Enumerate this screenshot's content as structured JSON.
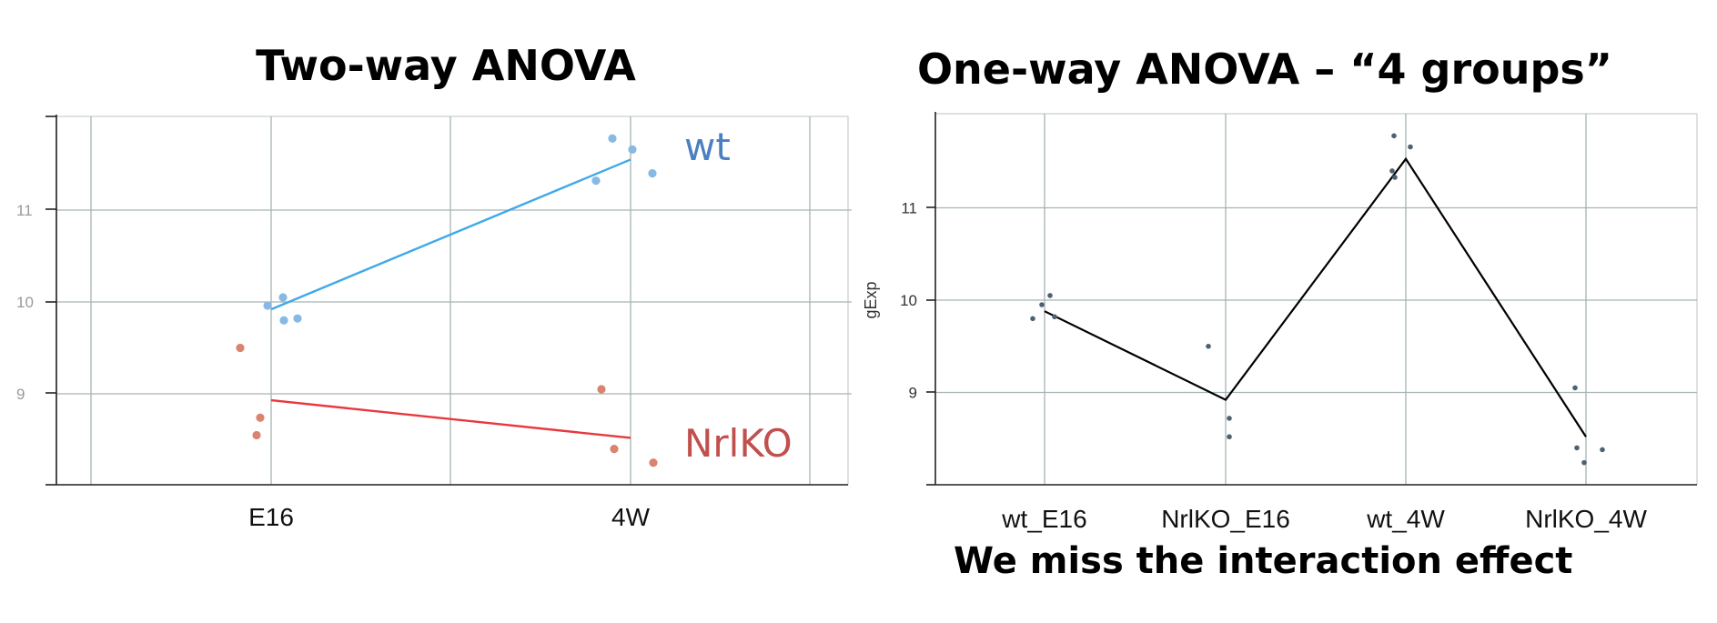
{
  "colors": {
    "wt": "#3fa9e8",
    "wt_points": "#87b9e2",
    "nrlko": "#e8383d",
    "nrlko_points": "#d9846e",
    "wt_label": "#4a7fc1",
    "nrlko_label": "#c0504d",
    "oneway_points": "#4d6170",
    "oneway_line": "#000000",
    "grid": "#a6b3b5"
  },
  "footnote": "We miss the interaction effect",
  "chart_data": [
    {
      "type": "line",
      "title": "Two-way ANOVA",
      "xlabel": "",
      "ylabel": "",
      "categories": [
        "E16",
        "4W"
      ],
      "y_ticks": [
        "11",
        "10",
        "9"
      ],
      "ylim": [
        8,
        12
      ],
      "grid": true,
      "series": [
        {
          "name": "wt",
          "fit": [
            9.92,
            11.55
          ],
          "points": [
            {
              "x": "E16",
              "y": 9.96
            },
            {
              "x": "E16",
              "y": 10.05
            },
            {
              "x": "E16",
              "y": 9.8
            },
            {
              "x": "E16",
              "y": 9.82
            },
            {
              "x": "4W",
              "y": 11.78
            },
            {
              "x": "4W",
              "y": 11.66
            },
            {
              "x": "4W",
              "y": 11.32
            },
            {
              "x": "4W",
              "y": 11.4
            }
          ]
        },
        {
          "name": "NrlKO",
          "fit": [
            8.93,
            8.52
          ],
          "points": [
            {
              "x": "E16",
              "y": 9.5
            },
            {
              "x": "E16",
              "y": 8.74
            },
            {
              "x": "E16",
              "y": 8.55
            },
            {
              "x": "4W",
              "y": 9.05
            },
            {
              "x": "4W",
              "y": 8.4
            },
            {
              "x": "4W",
              "y": 8.25
            }
          ]
        }
      ]
    },
    {
      "type": "line",
      "title": "One-way ANOVA – “4 groups”",
      "xlabel": "",
      "ylabel": "gExp",
      "categories": [
        "wt_E16",
        "NrlKO_E16",
        "wt_4W",
        "NrlKO_4W"
      ],
      "y_ticks": [
        "11",
        "10",
        "9"
      ],
      "ylim": [
        8,
        12
      ],
      "grid": true,
      "means": [
        9.88,
        8.92,
        11.53,
        8.52
      ],
      "points": [
        {
          "x": "wt_E16",
          "y": 9.95
        },
        {
          "x": "wt_E16",
          "y": 10.05
        },
        {
          "x": "wt_E16",
          "y": 9.8
        },
        {
          "x": "wt_E16",
          "y": 9.82
        },
        {
          "x": "NrlKO_E16",
          "y": 9.5
        },
        {
          "x": "NrlKO_E16",
          "y": 8.72
        },
        {
          "x": "NrlKO_E16",
          "y": 8.52
        },
        {
          "x": "wt_4W",
          "y": 11.78
        },
        {
          "x": "wt_4W",
          "y": 11.66
        },
        {
          "x": "wt_4W",
          "y": 11.4
        },
        {
          "x": "wt_4W",
          "y": 11.33
        },
        {
          "x": "NrlKO_4W",
          "y": 9.05
        },
        {
          "x": "NrlKO_4W",
          "y": 8.4
        },
        {
          "x": "NrlKO_4W",
          "y": 8.38
        },
        {
          "x": "NrlKO_4W",
          "y": 8.24
        }
      ]
    }
  ]
}
